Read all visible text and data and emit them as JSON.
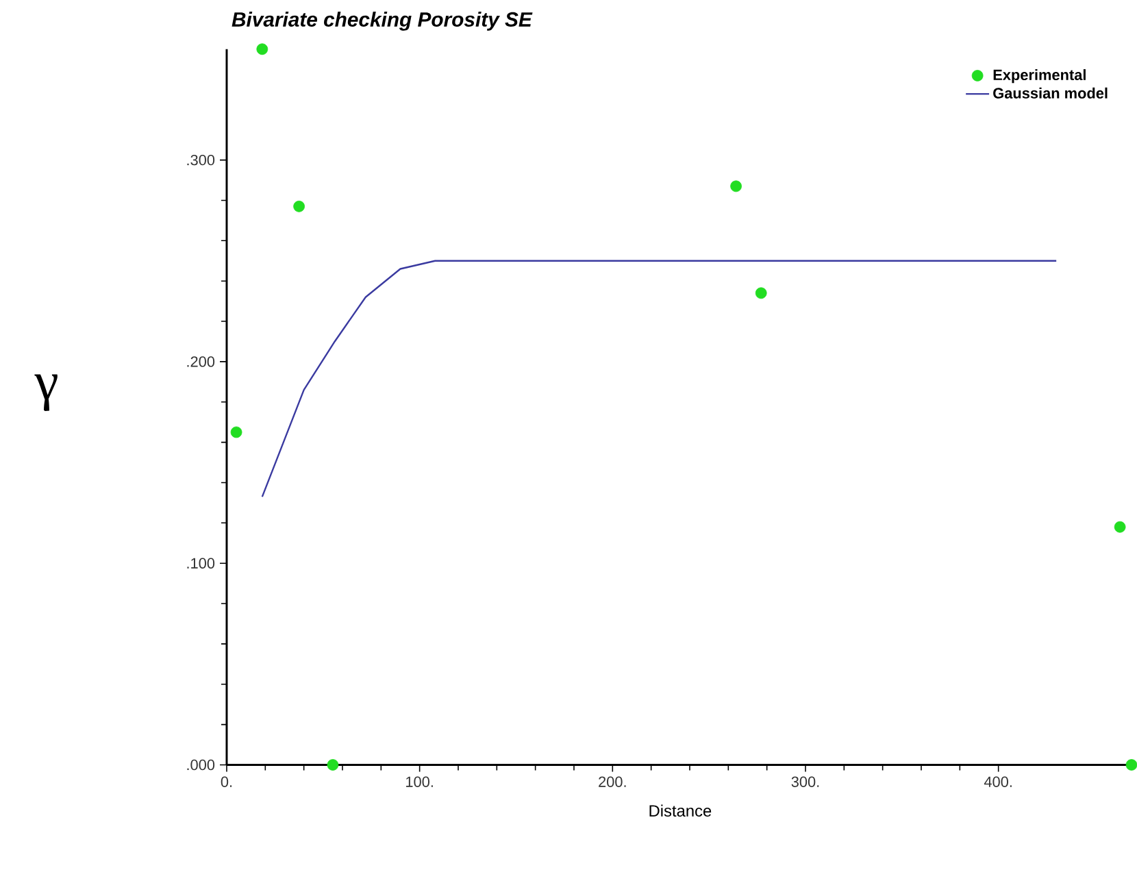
{
  "chart_data": {
    "type": "scatter",
    "title": "Bivariate checking Porosity SE",
    "xlabel": "Distance",
    "ylabel": "γ",
    "series": [
      {
        "name": "Experimental",
        "color": "#22dd22",
        "marker": "circle",
        "x": [
          5,
          18.4,
          37.5,
          55,
          264,
          277,
          463,
          469
        ],
        "values": [
          0.165,
          0.355,
          0.277,
          0,
          0.287,
          0.234,
          0.118,
          0
        ]
      },
      {
        "name": "Gaussian model",
        "type": "line",
        "color": "#3a3aa0",
        "marker": "none",
        "x": [
          18.4,
          40,
          56,
          72,
          90,
          108,
          430
        ],
        "values": [
          0.133,
          0.186,
          0.21,
          0.232,
          0.246,
          0.25,
          0.25
        ]
      }
    ],
    "xlim": [
      0,
      470
    ],
    "ylim": [
      0,
      0.355
    ],
    "xticks": [
      {
        "value": 0,
        "label": "0."
      },
      {
        "value": 100,
        "label": "100."
      },
      {
        "value": 200,
        "label": "200."
      },
      {
        "value": 300,
        "label": "300."
      },
      {
        "value": 400,
        "label": "400."
      }
    ],
    "yticks": [
      {
        "value": 0,
        "label": ".000"
      },
      {
        "value": 0.1,
        "label": ".100"
      },
      {
        "value": 0.2,
        "label": ".200"
      },
      {
        "value": 0.3,
        "label": ".300"
      }
    ],
    "grid": false,
    "legend": "top right"
  }
}
